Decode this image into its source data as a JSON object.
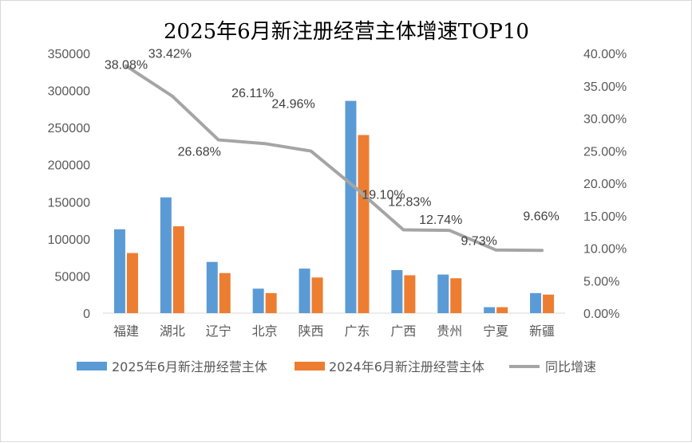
{
  "chart_data": {
    "type": "bar",
    "title": "2025年6月新注册经营主体增速TOP10",
    "categories": [
      "福建",
      "湖北",
      "辽宁",
      "北京",
      "陕西",
      "广东",
      "广西",
      "贵州",
      "宁夏",
      "新疆"
    ],
    "series": [
      {
        "name": "2025年6月新注册经营主体",
        "type": "bar",
        "axis": "left",
        "color": "#5b9bd5",
        "values": [
          113000,
          156000,
          69000,
          33000,
          60000,
          286000,
          58000,
          52000,
          8000,
          27000
        ]
      },
      {
        "name": "2024年6月新注册经营主体",
        "type": "bar",
        "axis": "right-bar",
        "color": "#ed7d31",
        "values": [
          81000,
          117000,
          54000,
          27000,
          48000,
          240000,
          51000,
          47000,
          8000,
          25000
        ]
      },
      {
        "name": "同比增速",
        "type": "line",
        "axis": "right",
        "color": "#a5a5a5",
        "values": [
          38.08,
          33.42,
          26.68,
          26.11,
          24.96,
          19.1,
          12.83,
          12.74,
          9.73,
          9.66
        ],
        "labels": [
          "38.08%",
          "33.42%",
          "26.68%",
          "26.11%",
          "24.96%",
          "19.10%",
          "12.83%",
          "12.74%",
          "9.73%",
          "9.66%"
        ]
      }
    ],
    "y_left": {
      "min": 0,
      "max": 350000,
      "ticks": [
        "0",
        "50000",
        "100000",
        "150000",
        "200000",
        "250000",
        "300000",
        "350000"
      ]
    },
    "y_right": {
      "min": 0,
      "max": 40,
      "ticks": [
        "0.00%",
        "5.00%",
        "10.00%",
        "15.00%",
        "20.00%",
        "25.00%",
        "30.00%",
        "35.00%",
        "40.00%"
      ]
    },
    "grid": false,
    "legend": "bottom"
  }
}
